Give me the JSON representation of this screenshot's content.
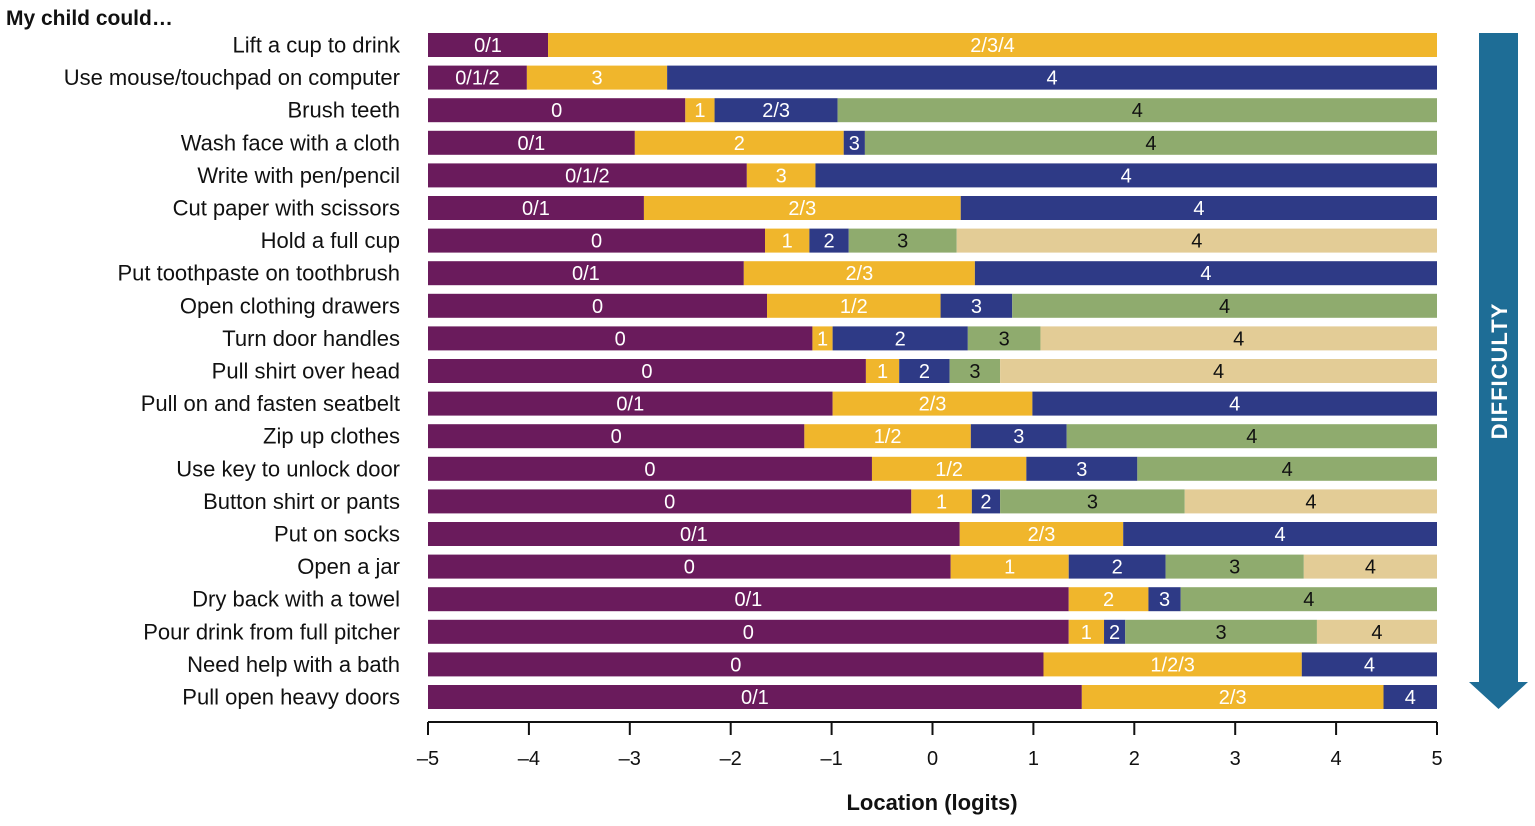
{
  "chart_data": {
    "type": "bar",
    "orientation": "horizontal-stacked",
    "title": "My child could…",
    "xlabel": "Location (logits)",
    "xlim": [
      -5,
      5
    ],
    "xticks": [
      -5,
      -4,
      -3,
      -2,
      -1,
      0,
      1,
      2,
      3,
      4,
      5
    ],
    "xtick_labels": [
      "–5",
      "–4",
      "–3",
      "–2",
      "–1",
      "0",
      "1",
      "2",
      "3",
      "4",
      "5"
    ],
    "arrow_label": "DIFFICULTY",
    "category_colors": {
      "0": "#6a1b5c",
      "1": "#f0b62c",
      "2": "#2e3a86",
      "3": "#8fab6e",
      "4": "#e3cc96"
    },
    "arrow_color": "#1e6d96",
    "rows": [
      {
        "label": "Lift a cup to drink",
        "segments": [
          {
            "label": "0/1",
            "cat": 0,
            "start": -5,
            "end": -3.81
          },
          {
            "label": "2/3/4",
            "cat": 1,
            "start": -3.81,
            "end": 5
          }
        ]
      },
      {
        "label": "Use mouse/touchpad on computer",
        "segments": [
          {
            "label": "0/1/2",
            "cat": 0,
            "start": -5,
            "end": -4.02
          },
          {
            "label": "3",
            "cat": 1,
            "start": -4.02,
            "end": -2.63
          },
          {
            "label": "4",
            "cat": 2,
            "start": -2.63,
            "end": 5
          }
        ]
      },
      {
        "label": "Brush teeth",
        "segments": [
          {
            "label": "0",
            "cat": 0,
            "start": -5,
            "end": -2.45
          },
          {
            "label": "1",
            "cat": 1,
            "start": -2.45,
            "end": -2.16
          },
          {
            "label": "2/3",
            "cat": 2,
            "start": -2.16,
            "end": -0.94
          },
          {
            "label": "4",
            "cat": 3,
            "start": -0.94,
            "end": 5
          }
        ]
      },
      {
        "label": "Wash face with a cloth",
        "segments": [
          {
            "label": "0/1",
            "cat": 0,
            "start": -5,
            "end": -2.95
          },
          {
            "label": "2",
            "cat": 1,
            "start": -2.95,
            "end": -0.88
          },
          {
            "label": "3",
            "cat": 2,
            "start": -0.88,
            "end": -0.67
          },
          {
            "label": "4",
            "cat": 3,
            "start": -0.67,
            "end": 5
          }
        ]
      },
      {
        "label": "Write with pen/pencil",
        "segments": [
          {
            "label": "0/1/2",
            "cat": 0,
            "start": -5,
            "end": -1.84
          },
          {
            "label": "3",
            "cat": 1,
            "start": -1.84,
            "end": -1.16
          },
          {
            "label": "4",
            "cat": 2,
            "start": -1.16,
            "end": 5
          }
        ]
      },
      {
        "label": "Cut paper with scissors",
        "segments": [
          {
            "label": "0/1",
            "cat": 0,
            "start": -5,
            "end": -2.86
          },
          {
            "label": "2/3",
            "cat": 1,
            "start": -2.86,
            "end": 0.28
          },
          {
            "label": "4",
            "cat": 2,
            "start": 0.28,
            "end": 5
          }
        ]
      },
      {
        "label": "Hold a full cup",
        "segments": [
          {
            "label": "0",
            "cat": 0,
            "start": -5,
            "end": -1.66
          },
          {
            "label": "1",
            "cat": 1,
            "start": -1.66,
            "end": -1.22
          },
          {
            "label": "2",
            "cat": 2,
            "start": -1.22,
            "end": -0.83
          },
          {
            "label": "3",
            "cat": 3,
            "start": -0.83,
            "end": 0.24
          },
          {
            "label": "4",
            "cat": 4,
            "start": 0.24,
            "end": 5
          }
        ]
      },
      {
        "label": "Put toothpaste on toothbrush",
        "segments": [
          {
            "label": "0/1",
            "cat": 0,
            "start": -5,
            "end": -1.87
          },
          {
            "label": "2/3",
            "cat": 1,
            "start": -1.87,
            "end": 0.42
          },
          {
            "label": "4",
            "cat": 2,
            "start": 0.42,
            "end": 5
          }
        ]
      },
      {
        "label": "Open clothing drawers",
        "segments": [
          {
            "label": "0",
            "cat": 0,
            "start": -5,
            "end": -1.64
          },
          {
            "label": "1/2",
            "cat": 1,
            "start": -1.64,
            "end": 0.08
          },
          {
            "label": "3",
            "cat": 2,
            "start": 0.08,
            "end": 0.79
          },
          {
            "label": "4",
            "cat": 3,
            "start": 0.79,
            "end": 5
          }
        ]
      },
      {
        "label": "Turn door handles",
        "segments": [
          {
            "label": "0",
            "cat": 0,
            "start": -5,
            "end": -1.19
          },
          {
            "label": "1",
            "cat": 1,
            "start": -1.19,
            "end": -0.99
          },
          {
            "label": "2",
            "cat": 2,
            "start": -0.99,
            "end": 0.35
          },
          {
            "label": "3",
            "cat": 3,
            "start": 0.35,
            "end": 1.07
          },
          {
            "label": "4",
            "cat": 4,
            "start": 1.07,
            "end": 5
          }
        ]
      },
      {
        "label": "Pull shirt over head",
        "segments": [
          {
            "label": "0",
            "cat": 0,
            "start": -5,
            "end": -0.66
          },
          {
            "label": "1",
            "cat": 1,
            "start": -0.66,
            "end": -0.33
          },
          {
            "label": "2",
            "cat": 2,
            "start": -0.33,
            "end": 0.17
          },
          {
            "label": "3",
            "cat": 3,
            "start": 0.17,
            "end": 0.67
          },
          {
            "label": "4",
            "cat": 4,
            "start": 0.67,
            "end": 5
          }
        ]
      },
      {
        "label": "Pull on and fasten seatbelt",
        "segments": [
          {
            "label": "0/1",
            "cat": 0,
            "start": -5,
            "end": -0.99
          },
          {
            "label": "2/3",
            "cat": 1,
            "start": -0.99,
            "end": 0.99
          },
          {
            "label": "4",
            "cat": 2,
            "start": 0.99,
            "end": 5
          }
        ]
      },
      {
        "label": "Zip up clothes",
        "segments": [
          {
            "label": "0",
            "cat": 0,
            "start": -5,
            "end": -1.27
          },
          {
            "label": "1/2",
            "cat": 1,
            "start": -1.27,
            "end": 0.38
          },
          {
            "label": "3",
            "cat": 2,
            "start": 0.38,
            "end": 1.33
          },
          {
            "label": "4",
            "cat": 3,
            "start": 1.33,
            "end": 5
          }
        ]
      },
      {
        "label": "Use key to unlock door",
        "segments": [
          {
            "label": "0",
            "cat": 0,
            "start": -5,
            "end": -0.6
          },
          {
            "label": "1/2",
            "cat": 1,
            "start": -0.6,
            "end": 0.93
          },
          {
            "label": "3",
            "cat": 2,
            "start": 0.93,
            "end": 2.03
          },
          {
            "label": "4",
            "cat": 3,
            "start": 2.03,
            "end": 5
          }
        ]
      },
      {
        "label": "Button shirt  or pants",
        "segments": [
          {
            "label": "0",
            "cat": 0,
            "start": -5,
            "end": -0.21
          },
          {
            "label": "1",
            "cat": 1,
            "start": -0.21,
            "end": 0.39
          },
          {
            "label": "2",
            "cat": 2,
            "start": 0.39,
            "end": 0.67
          },
          {
            "label": "3",
            "cat": 3,
            "start": 0.67,
            "end": 2.5
          },
          {
            "label": "4",
            "cat": 4,
            "start": 2.5,
            "end": 5
          }
        ]
      },
      {
        "label": "Put on socks",
        "segments": [
          {
            "label": "0/1",
            "cat": 0,
            "start": -5,
            "end": 0.27
          },
          {
            "label": "2/3",
            "cat": 1,
            "start": 0.27,
            "end": 1.89
          },
          {
            "label": "4",
            "cat": 2,
            "start": 1.89,
            "end": 5
          }
        ]
      },
      {
        "label": "Open a jar",
        "segments": [
          {
            "label": "0",
            "cat": 0,
            "start": -5,
            "end": 0.18
          },
          {
            "label": "1",
            "cat": 1,
            "start": 0.18,
            "end": 1.35
          },
          {
            "label": "2",
            "cat": 2,
            "start": 1.35,
            "end": 2.31
          },
          {
            "label": "3",
            "cat": 3,
            "start": 2.31,
            "end": 3.68
          },
          {
            "label": "4",
            "cat": 4,
            "start": 3.68,
            "end": 5
          }
        ]
      },
      {
        "label": "Dry back with a towel",
        "segments": [
          {
            "label": "0/1",
            "cat": 0,
            "start": -5,
            "end": 1.35
          },
          {
            "label": "2",
            "cat": 1,
            "start": 1.35,
            "end": 2.14
          },
          {
            "label": "3",
            "cat": 2,
            "start": 2.14,
            "end": 2.46
          },
          {
            "label": "4",
            "cat": 3,
            "start": 2.46,
            "end": 5
          }
        ]
      },
      {
        "label": "Pour drink from full pitcher",
        "segments": [
          {
            "label": "0",
            "cat": 0,
            "start": -5,
            "end": 1.35
          },
          {
            "label": "1",
            "cat": 1,
            "start": 1.35,
            "end": 1.7
          },
          {
            "label": "2",
            "cat": 2,
            "start": 1.7,
            "end": 1.91
          },
          {
            "label": "3",
            "cat": 3,
            "start": 1.91,
            "end": 3.81
          },
          {
            "label": "4",
            "cat": 4,
            "start": 3.81,
            "end": 5
          }
        ]
      },
      {
        "label": "Need help with a bath",
        "segments": [
          {
            "label": "0",
            "cat": 0,
            "start": -5,
            "end": 1.1
          },
          {
            "label": "1/2/3",
            "cat": 1,
            "start": 1.1,
            "end": 3.66
          },
          {
            "label": "4",
            "cat": 2,
            "start": 3.66,
            "end": 5
          }
        ]
      },
      {
        "label": "Pull open heavy doors",
        "segments": [
          {
            "label": "0/1",
            "cat": 0,
            "start": -5,
            "end": 1.48
          },
          {
            "label": "2/3",
            "cat": 1,
            "start": 1.48,
            "end": 4.47
          },
          {
            "label": "4",
            "cat": 2,
            "start": 4.47,
            "end": 5
          }
        ]
      }
    ]
  }
}
